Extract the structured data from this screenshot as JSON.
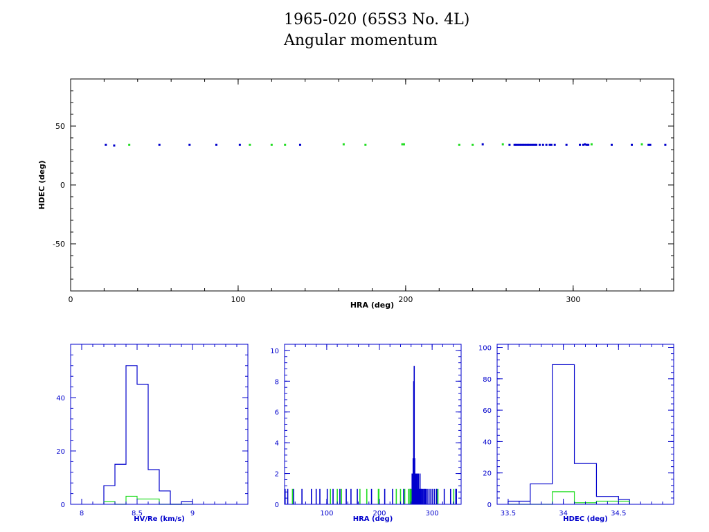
{
  "header": {
    "title": "1965-020 (65S3 No. 4L)",
    "subtitle": "Angular momentum"
  },
  "colors": {
    "blue": "#0000cc",
    "green": "#22dd22",
    "axis_black": "#000000"
  },
  "chart_data": [
    {
      "type": "scatter",
      "xlabel": "HRA (deg)",
      "ylabel": "HDEC (deg)",
      "xlim": [
        0,
        360
      ],
      "ylim": [
        -90,
        90
      ],
      "xticks": [
        0,
        100,
        200,
        300
      ],
      "yticks": [
        -50,
        0,
        50
      ],
      "axis_color": "#000000",
      "series": [
        {
          "color": "#0000cc",
          "points": [
            [
              21,
              34
            ],
            [
              26,
              33.5
            ],
            [
              53,
              34
            ],
            [
              71,
              34
            ],
            [
              87,
              34
            ],
            [
              101,
              34
            ],
            [
              137,
              34
            ],
            [
              246,
              34.5
            ],
            [
              262,
              34
            ],
            [
              265,
              34
            ],
            [
              266,
              34
            ],
            [
              267,
              34
            ],
            [
              268,
              34
            ],
            [
              269,
              34
            ],
            [
              270,
              34
            ],
            [
              271,
              34
            ],
            [
              272,
              34
            ],
            [
              273,
              34
            ],
            [
              274,
              34
            ],
            [
              275,
              34
            ],
            [
              276,
              34
            ],
            [
              277,
              34
            ],
            [
              278,
              34
            ],
            [
              280,
              34
            ],
            [
              282,
              34
            ],
            [
              284,
              34
            ],
            [
              286,
              34
            ],
            [
              287,
              34
            ],
            [
              289,
              34
            ],
            [
              296,
              34
            ],
            [
              304,
              34
            ],
            [
              306,
              34
            ],
            [
              307,
              34.5
            ],
            [
              308,
              34
            ],
            [
              309,
              34
            ],
            [
              323,
              34
            ],
            [
              335,
              34
            ],
            [
              345,
              34
            ],
            [
              346,
              34
            ],
            [
              355,
              34
            ]
          ]
        },
        {
          "color": "#22dd22",
          "points": [
            [
              35,
              34
            ],
            [
              107,
              34
            ],
            [
              120,
              34
            ],
            [
              128,
              34
            ],
            [
              163,
              34.5
            ],
            [
              176,
              34
            ],
            [
              198,
              34.5
            ],
            [
              199,
              34.5
            ],
            [
              232,
              34
            ],
            [
              240,
              34
            ],
            [
              258,
              34.5
            ],
            [
              311,
              34.5
            ],
            [
              341,
              34.5
            ]
          ]
        }
      ]
    },
    {
      "type": "histogram",
      "xlabel": "HV/Re (km/s)",
      "ylabel": "",
      "xlim": [
        7.9,
        9.5
      ],
      "ylim": [
        0,
        60
      ],
      "xticks": [
        8,
        8.5,
        9
      ],
      "xtick_labels": [
        "8",
        "8.5",
        "9"
      ],
      "yticks": [
        0,
        20,
        40
      ],
      "axis_color": "#0000cc",
      "bin_edges": [
        8.2,
        8.3,
        8.4,
        8.5,
        8.6,
        8.7,
        8.8,
        8.9,
        9.0
      ],
      "series": [
        {
          "color": "#0000cc",
          "counts": [
            7,
            15,
            52,
            45,
            13,
            5,
            0,
            1
          ]
        },
        {
          "color": "#22dd22",
          "counts": [
            1,
            0,
            3,
            2,
            2,
            0,
            0,
            0
          ]
        }
      ]
    },
    {
      "type": "bar",
      "xlabel": "HRA (deg)",
      "ylabel": "",
      "xlim": [
        20,
        355
      ],
      "ylim": [
        0,
        10.4
      ],
      "xticks": [
        100,
        200,
        300
      ],
      "yticks": [
        0,
        2,
        4,
        6,
        8,
        10
      ],
      "axis_color": "#0000cc",
      "series": [
        {
          "color": "#0000cc",
          "x": [
            21,
            26,
            37,
            53,
            71,
            80,
            87,
            101,
            112,
            125,
            137,
            146,
            158,
            185,
            210,
            225,
            246,
            258,
            262,
            264,
            265,
            266,
            267,
            268,
            269,
            270,
            271,
            272,
            273,
            274,
            275,
            276,
            277,
            278,
            279,
            280,
            282,
            284,
            286,
            287,
            289,
            292,
            296,
            300,
            304,
            308,
            309,
            323,
            335,
            345,
            346
          ],
          "values": [
            1,
            1,
            1,
            1,
            1,
            1,
            1,
            1,
            1,
            1,
            1,
            1,
            1,
            1,
            1,
            1,
            1,
            1,
            2,
            3,
            8,
            9,
            3,
            2,
            1,
            2,
            1,
            2,
            1,
            2,
            1,
            1,
            2,
            1,
            1,
            1,
            1,
            1,
            1,
            1,
            1,
            1,
            1,
            1,
            1,
            1,
            1,
            1,
            1,
            1,
            1
          ]
        },
        {
          "color": "#22dd22",
          "x": [
            35,
            107,
            120,
            128,
            163,
            176,
            198,
            199,
            232,
            240,
            248,
            255,
            258,
            260,
            311,
            341
          ],
          "values": [
            1,
            1,
            1,
            1,
            1,
            1,
            1,
            1,
            1,
            1,
            1,
            1,
            1,
            1,
            1,
            1
          ]
        }
      ]
    },
    {
      "type": "histogram",
      "xlabel": "HDEC (deg)",
      "ylabel": "",
      "xlim": [
        33.4,
        35.0
      ],
      "ylim": [
        0,
        102
      ],
      "xticks": [
        33.5,
        34,
        34.5
      ],
      "xtick_labels": [
        "33.5",
        "34",
        "34.5"
      ],
      "yticks": [
        0,
        20,
        40,
        60,
        80,
        100
      ],
      "axis_color": "#0000cc",
      "bin_edges": [
        33.5,
        33.6,
        33.7,
        33.8,
        33.9,
        34.0,
        34.1,
        34.2,
        34.3,
        34.4,
        34.5,
        34.6
      ],
      "series": [
        {
          "color": "#0000cc",
          "counts": [
            2,
            2,
            13,
            13,
            89,
            89,
            26,
            26,
            5,
            5,
            3
          ]
        },
        {
          "color": "#22dd22",
          "counts": [
            0,
            0,
            0,
            0,
            8,
            8,
            1,
            1,
            2,
            2,
            2
          ]
        }
      ]
    }
  ]
}
